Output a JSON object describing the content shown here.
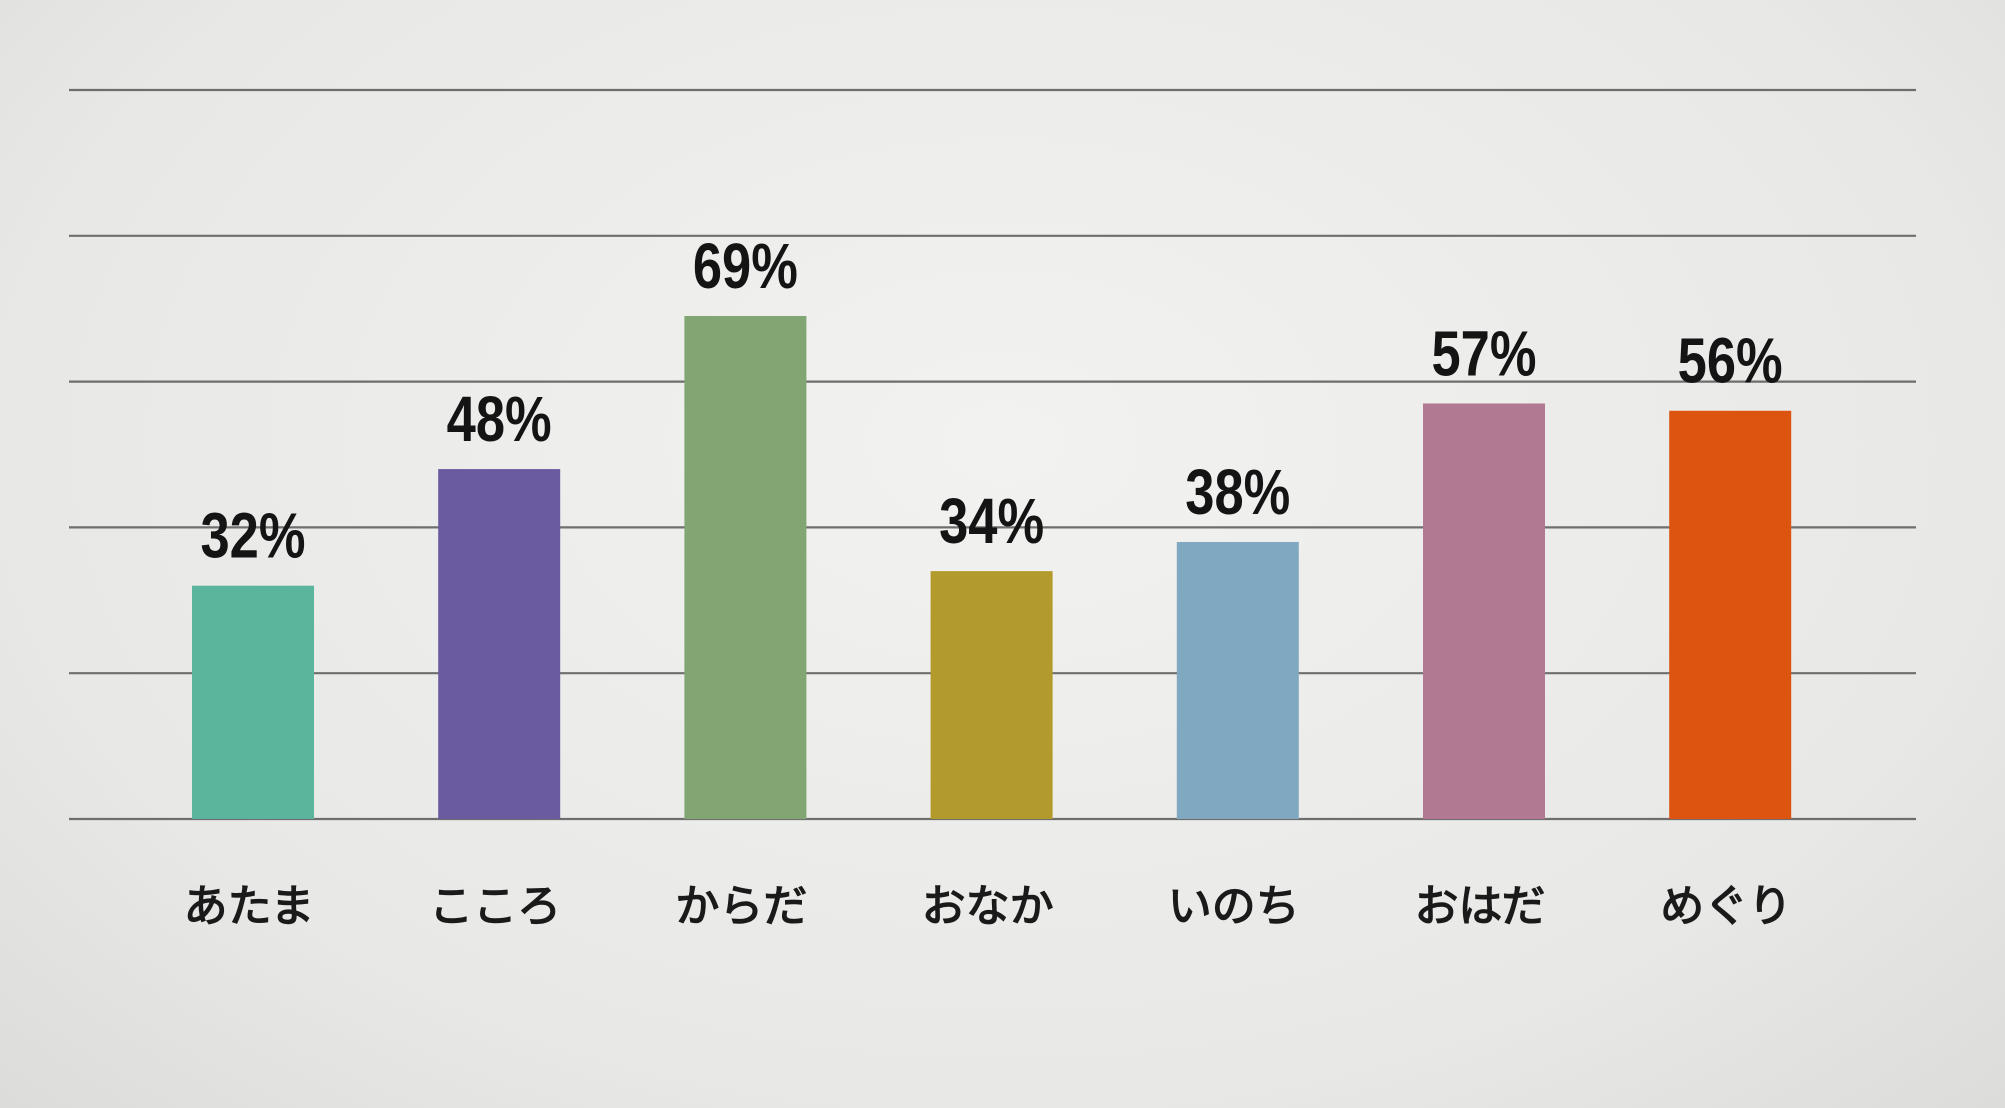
{
  "chart_data": {
    "type": "bar",
    "categories": [
      "あたま",
      "こころ",
      "からだ",
      "おなか",
      "いのち",
      "おはだ",
      "めぐり"
    ],
    "values": [
      32,
      48,
      69,
      34,
      38,
      57,
      56
    ],
    "data_labels": [
      "32%",
      "48%",
      "69%",
      "34%",
      "38%",
      "57%",
      "56%"
    ],
    "colors": [
      "#5bb59c",
      "#6a5ba0",
      "#82a673",
      "#b39a2c",
      "#80a8c0",
      "#b27a92",
      "#dc5410"
    ],
    "title": "",
    "xlabel": "",
    "ylabel": "",
    "ylim": [
      0,
      100
    ],
    "gridlines": [
      0,
      20,
      40,
      60,
      80,
      100
    ],
    "grid": true,
    "legend": "none"
  }
}
